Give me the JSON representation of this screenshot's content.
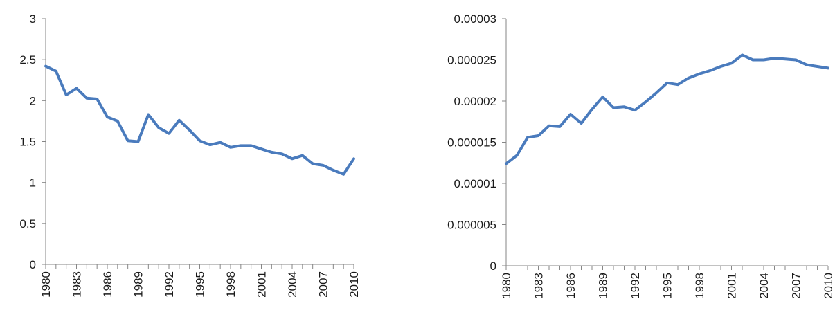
{
  "chart_data": [
    {
      "type": "line",
      "x": [
        1980,
        1981,
        1982,
        1983,
        1984,
        1985,
        1986,
        1987,
        1988,
        1989,
        1990,
        1991,
        1992,
        1993,
        1994,
        1995,
        1996,
        1997,
        1998,
        1999,
        2000,
        2001,
        2002,
        2003,
        2004,
        2005,
        2006,
        2007,
        2008,
        2009,
        2010
      ],
      "x_tick_labels": [
        "1980",
        "1983",
        "1986",
        "1989",
        "1992",
        "1995",
        "1998",
        "2001",
        "2004",
        "2007",
        "2010"
      ],
      "series": [
        {
          "values": [
            2.42,
            2.36,
            2.07,
            2.15,
            2.03,
            2.02,
            1.8,
            1.75,
            1.51,
            1.5,
            1.83,
            1.67,
            1.6,
            1.76,
            1.64,
            1.51,
            1.46,
            1.49,
            1.43,
            1.45,
            1.45,
            1.41,
            1.37,
            1.35,
            1.29,
            1.33,
            1.23,
            1.21,
            1.15,
            1.1,
            1.29
          ],
          "color": "#4a7bbd"
        }
      ],
      "ylim": [
        0,
        3
      ],
      "y_tick_labels": [
        "0",
        "0.5",
        "1",
        "1.5",
        "2",
        "2.5",
        "3"
      ],
      "grid": false,
      "legend": "none"
    },
    {
      "type": "line",
      "x": [
        1980,
        1981,
        1982,
        1983,
        1984,
        1985,
        1986,
        1987,
        1988,
        1989,
        1990,
        1991,
        1992,
        1993,
        1994,
        1995,
        1996,
        1997,
        1998,
        1999,
        2000,
        2001,
        2002,
        2003,
        2004,
        2005,
        2006,
        2007,
        2008,
        2009,
        2010
      ],
      "x_tick_labels": [
        "1980",
        "1983",
        "1986",
        "1989",
        "1992",
        "1995",
        "1998",
        "2001",
        "2004",
        "2007",
        "2010"
      ],
      "series": [
        {
          "values": [
            1.24e-05,
            1.34e-05,
            1.56e-05,
            1.58e-05,
            1.7e-05,
            1.69e-05,
            1.84e-05,
            1.73e-05,
            1.9e-05,
            2.05e-05,
            1.92e-05,
            1.93e-05,
            1.89e-05,
            1.99e-05,
            2.1e-05,
            2.22e-05,
            2.2e-05,
            2.28e-05,
            2.33e-05,
            2.37e-05,
            2.42e-05,
            2.46e-05,
            2.56e-05,
            2.5e-05,
            2.5e-05,
            2.52e-05,
            2.51e-05,
            2.5e-05,
            2.44e-05,
            2.42e-05,
            2.4e-05
          ],
          "color": "#4a7bbd"
        }
      ],
      "ylim": [
        0,
        3e-05
      ],
      "y_tick_labels": [
        "0",
        "0.000005",
        "0.00001",
        "0.000015",
        "0.00002",
        "0.000025",
        "0.00003"
      ],
      "grid": false,
      "legend": "none"
    }
  ]
}
